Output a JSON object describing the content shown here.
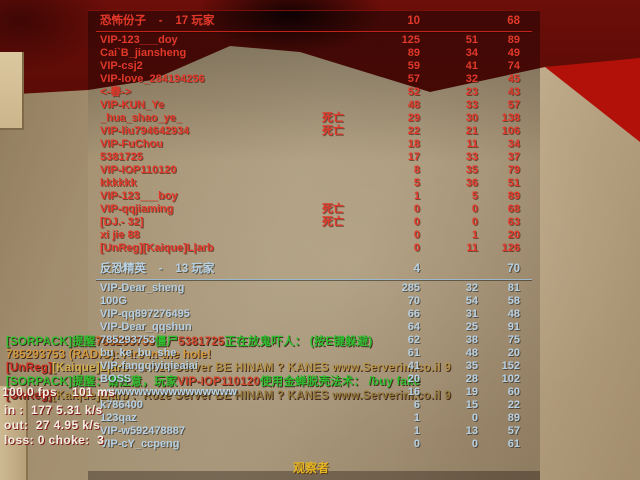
{
  "hud": {
    "scoreboard": {
      "teams": [
        {
          "id": "terrorists",
          "header": "恐怖份子    -    17 玩家",
          "score": "10",
          "ping": "68",
          "side": "t",
          "players": [
            {
              "name": "VIP-123___doy",
              "status": "",
              "frags": "125",
              "deaths": "51",
              "ping": "89"
            },
            {
              "name": "Cai`B_jiansheng",
              "status": "",
              "frags": "89",
              "deaths": "34",
              "ping": "49"
            },
            {
              "name": "VIP-csj2",
              "status": "",
              "frags": "59",
              "deaths": "41",
              "ping": "74"
            },
            {
              "name": "VIP-love_284194256",
              "status": "",
              "frags": "57",
              "deaths": "32",
              "ping": "45"
            },
            {
              "name": "<-春->",
              "status": "",
              "frags": "52",
              "deaths": "23",
              "ping": "43"
            },
            {
              "name": "VIP-KUN_Ye",
              "status": "",
              "frags": "48",
              "deaths": "33",
              "ping": "57"
            },
            {
              "name": "_hua_shao_ye_",
              "status": "死亡",
              "frags": "29",
              "deaths": "30",
              "ping": "138"
            },
            {
              "name": "VIP-liu794642934",
              "status": "死亡",
              "frags": "22",
              "deaths": "21",
              "ping": "106"
            },
            {
              "name": "VIP-FuChou",
              "status": "",
              "frags": "18",
              "deaths": "11",
              "ping": "34"
            },
            {
              "name": "5381725",
              "status": "",
              "frags": "17",
              "deaths": "33",
              "ping": "37"
            },
            {
              "name": "VIP-IOP110120",
              "status": "",
              "frags": "8",
              "deaths": "35",
              "ping": "79"
            },
            {
              "name": "kkkkkk",
              "status": "",
              "frags": "5",
              "deaths": "36",
              "ping": "51"
            },
            {
              "name": "VIP-123___boy",
              "status": "",
              "frags": "1",
              "deaths": "5",
              "ping": "89"
            },
            {
              "name": "VIP-qqjiaming",
              "status": "死亡",
              "frags": "0",
              "deaths": "0",
              "ping": "68"
            },
            {
              "name": "[DJ.- 32]",
              "status": "死亡",
              "frags": "0",
              "deaths": "0",
              "ping": "63"
            },
            {
              "name": "xi jie 88",
              "status": "",
              "frags": "0",
              "deaths": "1",
              "ping": "20"
            },
            {
              "name": "[UnReg][Kaique]L|arb",
              "status": "",
              "frags": "0",
              "deaths": "11",
              "ping": "126"
            }
          ]
        },
        {
          "id": "counter-terrorists",
          "header": "反恐精英    -    13 玩家",
          "score": "4",
          "ping": "70",
          "side": "ct",
          "players": [
            {
              "name": "VIP-Dear_sheng",
              "status": "",
              "frags": "285",
              "deaths": "32",
              "ping": "81"
            },
            {
              "name": "100G",
              "status": "",
              "frags": "70",
              "deaths": "54",
              "ping": "58"
            },
            {
              "name": "VIP-qq897276495",
              "status": "",
              "frags": "66",
              "deaths": "31",
              "ping": "48"
            },
            {
              "name": "VIP-Dear_qqshun",
              "status": "",
              "frags": "64",
              "deaths": "25",
              "ping": "91"
            },
            {
              "name": "785293753",
              "status": "",
              "frags": "62",
              "deaths": "38",
              "ping": "75"
            },
            {
              "name": "bu_ke_bu_she",
              "status": "",
              "frags": "61",
              "deaths": "48",
              "ping": "20"
            },
            {
              "name": "VIP-fangqiyiqieaiai",
              "status": "",
              "frags": "41",
              "deaths": "35",
              "ping": "152"
            },
            {
              "name": "BOSS",
              "status": "",
              "frags": "20",
              "deaths": "28",
              "ping": "102"
            },
            {
              "name": "wwwwwwwwwwwwwwww",
              "status": "",
              "frags": "16",
              "deaths": "19",
              "ping": "60"
            },
            {
              "name": "k786400",
              "status": "",
              "frags": "6",
              "deaths": "15",
              "ping": "22"
            },
            {
              "name": "123qaz",
              "status": "",
              "frags": "1",
              "deaths": "0",
              "ping": "89"
            },
            {
              "name": "VIP-w592478887",
              "status": "",
              "frags": "1",
              "deaths": "13",
              "ping": "57"
            },
            {
              "name": "VIP-cY_ccpeng",
              "status": "",
              "frags": "0",
              "deaths": "0",
              "ping": "61"
            }
          ]
        }
      ],
      "spectators_label": "观察者"
    },
    "chat": {
      "lines": [
        {
          "segments": [
            {
              "text": "[SORPACK]提醒",
              "color": "#2fbe2f"
            },
            {
              "text": "785293753",
              "color": "#c56a28"
            },
            {
              "text": "僵尸",
              "color": "#2fbe2f"
            },
            {
              "text": "5381725",
              "color": "#d0482e"
            },
            {
              "text": "正在放鬼吓人： (按E键躲避)",
              "color": "#2fbe2f"
            }
          ]
        },
        {
          "segments": [
            {
              "text": "785293753 (RADIO): Fire in the hole!",
              "color": "#d29a3c"
            }
          ]
        },
        {
          "segments": [
            {
              "text": "[UnReg]",
              "color": "#cf2d20"
            },
            {
              "text": "[Kaique]L|arb",
              "color": "#d2b04a"
            },
            {
              "text": " :  Roze Server BE HINAM ? KANES www.Serverim.co.il 9",
              "color": "#b49448"
            }
          ]
        },
        {
          "segments": [
            {
              "text": "[SORPACK]提醒：请注意，玩家",
              "color": "#2fbe2f"
            },
            {
              "text": "VIP-IOP110120",
              "color": "#d0482e"
            },
            {
              "text": "使用金蝉脱壳法术： /buy fake",
              "color": "#2fbe2f"
            }
          ]
        },
        {
          "segments": [
            {
              "text": "[UnReg]",
              "color": "#a8261c"
            },
            {
              "text": "[Kaique]L|arb",
              "color": "#a88c3e"
            },
            {
              "text": " :  Roze Server BE HINAM ? KANES www.Serverim.co.il 9",
              "color": "#93793c"
            }
          ]
        }
      ]
    },
    "netgraph": {
      "fps_line": "100.0 fps    101 ms",
      "in_line": "in :  177 5.31 k/s",
      "out_line": "out:  27 4.95 k/s",
      "loss_line": "loss: 0 choke:  3"
    }
  },
  "colors": {
    "t_text": "#e2382a",
    "ct_text": "#b6d0e4",
    "spectator_text": "#e5b622",
    "t_rule": "#c22318",
    "ct_rule": "#9cb8ce",
    "net_text": "#f4efe6"
  }
}
